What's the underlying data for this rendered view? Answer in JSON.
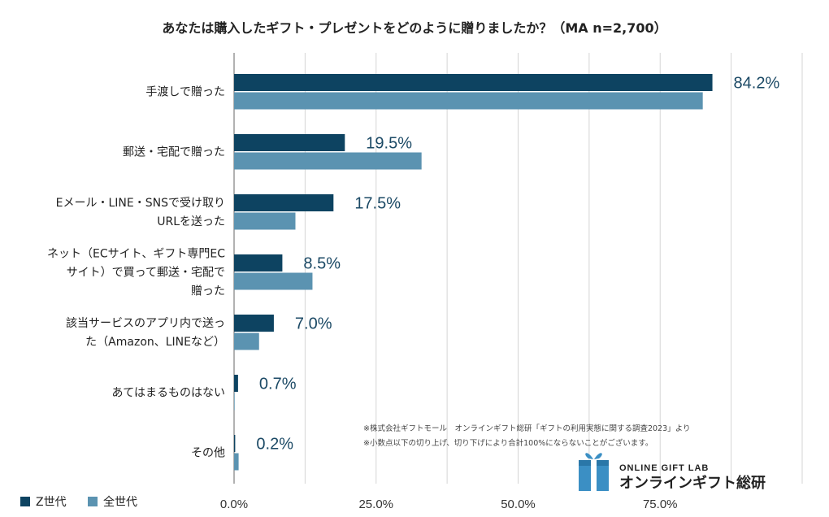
{
  "colors": {
    "z_gen": "#0d4361",
    "all_gen": "#5b93b1",
    "label": "#1b4965",
    "grid": "#d5d5d5"
  },
  "chart_data": {
    "type": "bar",
    "orientation": "horizontal",
    "title": "あなたは購入したギフト・プレゼントをどのように贈りましたか？（MA n=2,700）",
    "categories": [
      [
        "手渡しで贈った"
      ],
      [
        "郵送・宅配で贈った"
      ],
      [
        "Eメール・LINE・SNSで受け取り",
        "URLを送った"
      ],
      [
        "ネット（ECサイト、ギフト専門EC",
        "サイト）で買って郵送・宅配で",
        "贈った"
      ],
      [
        "該当サービスのアプリ内で送っ",
        "た（Amazon、LINEなど）"
      ],
      [
        "あてはまるものはない"
      ],
      [
        "その他"
      ]
    ],
    "series": [
      {
        "name": "Z世代",
        "values": [
          84.2,
          19.5,
          17.5,
          8.5,
          7.0,
          0.7,
          0.2
        ],
        "labels": [
          "84.2%",
          "19.5%",
          "17.5%",
          "8.5%",
          "7.0%",
          "0.7%",
          "0.2%"
        ]
      },
      {
        "name": "全世代",
        "values": [
          82.5,
          33.0,
          10.8,
          13.8,
          4.4,
          0.1,
          0.8
        ]
      }
    ],
    "xlim": [
      0,
      100
    ],
    "xticks": [
      0,
      25,
      50,
      75
    ],
    "xtick_labels": [
      "0.0%",
      "25.0%",
      "50.0%",
      "75.0%"
    ],
    "grid": true,
    "legend_position": "bottom-left"
  },
  "notes": [
    "※株式会社ギフトモール　オンラインギフト総研「ギフトの利用実態に関する調査2023」より",
    "※小数点以下の切り上げ、切り下げにより合計100%にならないことがございます。"
  ],
  "logo": {
    "en": "ONLINE GIFT LAB",
    "jp": "オンラインギフト総研",
    "icon": "gift-box-icon"
  }
}
